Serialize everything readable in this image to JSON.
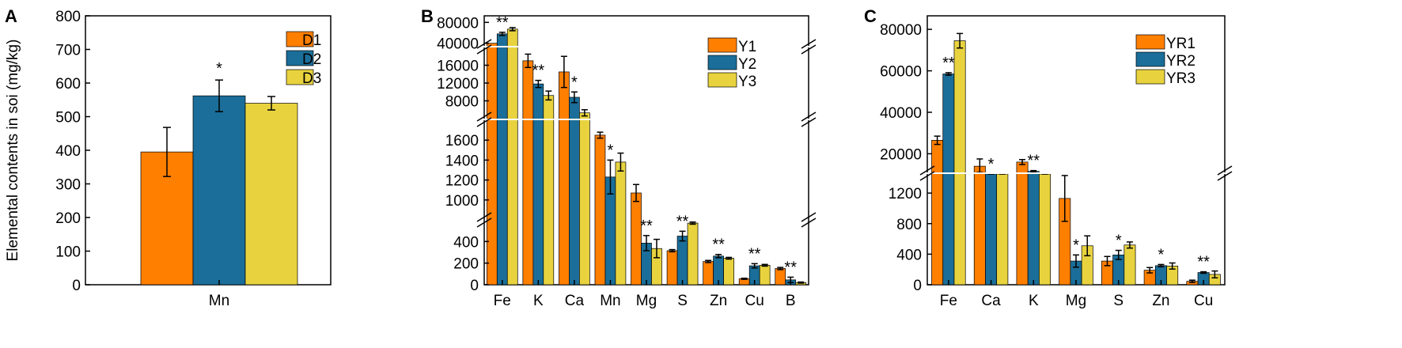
{
  "colors": {
    "s1": "#FF7F00",
    "s2": "#1A6E99",
    "s3": "#E8D33F",
    "edge": "#000000"
  },
  "chart_data": [
    {
      "panel_label": "A",
      "type": "bar",
      "ylabel": "Elemental contents in soi (mg/kg)",
      "categories": [
        "Mn"
      ],
      "ylim": [
        0,
        800
      ],
      "yticks": [
        "0",
        "100",
        "200",
        "300",
        "400",
        "500",
        "600",
        "700",
        "800"
      ],
      "series": [
        {
          "name": "D1",
          "values": [
            395
          ],
          "errors": [
            73
          ]
        },
        {
          "name": "D2",
          "values": [
            562
          ],
          "errors": [
            47
          ]
        },
        {
          "name": "D3",
          "values": [
            540
          ],
          "errors": [
            20
          ]
        }
      ],
      "annotations": [
        {
          "category": "Mn",
          "text": "*"
        }
      ],
      "legend": "top-right"
    },
    {
      "panel_label": "B",
      "type": "bar",
      "categories": [
        "Fe",
        "K",
        "Ca",
        "Mn",
        "Mg",
        "S",
        "Zn",
        "Cu",
        "B"
      ],
      "broken_axis": true,
      "segments": [
        {
          "range": [
            0,
            600
          ],
          "ticks": [
            "0",
            "200",
            "400"
          ]
        },
        {
          "range": [
            800,
            1800
          ],
          "ticks": [
            "1000",
            "1200",
            "1400",
            "1600"
          ]
        },
        {
          "range": [
            4000,
            20000
          ],
          "ticks": [
            "8000",
            "12000",
            "16000"
          ]
        },
        {
          "range": [
            35000,
            85000
          ],
          "ticks": [
            "40000",
            "80000"
          ]
        }
      ],
      "series": [
        {
          "name": "Y1",
          "values": [
            40000,
            17000,
            14500,
            1650,
            1070,
            315,
            215,
            55,
            150
          ],
          "errors": [
            0,
            1500,
            3500,
            30,
            85,
            10,
            10,
            5,
            10
          ]
        },
        {
          "name": "Y2",
          "values": [
            58000,
            11800,
            8800,
            1230,
            385,
            450,
            265,
            175,
            45
          ],
          "errors": [
            3000,
            800,
            1200,
            170,
            70,
            45,
            15,
            20,
            25
          ]
        },
        {
          "name": "Y3",
          "values": [
            67000,
            9200,
            5300,
            1380,
            335,
            570,
            245,
            180,
            20
          ],
          "errors": [
            3000,
            1000,
            700,
            90,
            85,
            10,
            8,
            8,
            5
          ]
        }
      ],
      "annotations": [
        {
          "category": "Fe",
          "text": "**"
        },
        {
          "category": "K",
          "text": "**"
        },
        {
          "category": "Ca",
          "text": "*"
        },
        {
          "category": "Mn",
          "text": "*"
        },
        {
          "category": "Mg",
          "text": "**"
        },
        {
          "category": "S",
          "text": "**"
        },
        {
          "category": "Zn",
          "text": "**"
        },
        {
          "category": "Cu",
          "text": "**"
        },
        {
          "category": "B",
          "text": "**"
        }
      ],
      "legend": "top-right"
    },
    {
      "panel_label": "C",
      "type": "bar",
      "categories": [
        "Fe",
        "Ca",
        "K",
        "Mg",
        "S",
        "Zn",
        "Cu"
      ],
      "broken_axis": true,
      "segments": [
        {
          "range": [
            0,
            1450
          ],
          "ticks": [
            "0",
            "400",
            "800",
            "1200"
          ]
        },
        {
          "range": [
            11000,
            85000
          ],
          "ticks": [
            "20000",
            "40000",
            "60000",
            "80000"
          ]
        }
      ],
      "series": [
        {
          "name": "YR1",
          "values": [
            26500,
            14000,
            16000,
            1130,
            310,
            190,
            45
          ],
          "errors": [
            2000,
            3500,
            1200,
            300,
            60,
            35,
            15
          ]
        },
        {
          "name": "YR2",
          "values": [
            58500,
            6500,
            11500,
            310,
            390,
            250,
            160
          ],
          "errors": [
            600,
            300,
            400,
            80,
            60,
            15,
            10
          ]
        },
        {
          "name": "YR3",
          "values": [
            74500,
            7000,
            9000,
            510,
            520,
            245,
            135
          ],
          "errors": [
            3500,
            300,
            200,
            130,
            40,
            40,
            45
          ]
        }
      ],
      "annotations": [
        {
          "category": "Fe",
          "text": "**"
        },
        {
          "category": "Ca",
          "text": "*"
        },
        {
          "category": "K",
          "text": "**"
        },
        {
          "category": "Mg",
          "text": "*"
        },
        {
          "category": "S",
          "text": "*"
        },
        {
          "category": "Zn",
          "text": "*"
        },
        {
          "category": "Cu",
          "text": "**"
        }
      ],
      "legend": "top-right"
    }
  ]
}
